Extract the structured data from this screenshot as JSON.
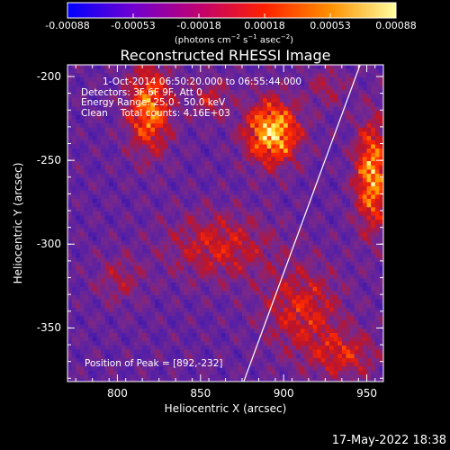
{
  "colorbar": {
    "ticks": [
      "-0.00088",
      "-0.00053",
      "-0.00018",
      "0.00018",
      "0.00053",
      "0.00088"
    ],
    "tick_values": [
      -0.00088,
      -0.00053,
      -0.00018,
      0.00018,
      0.00053,
      0.00088
    ],
    "units_parts": [
      "(photons cm",
      "−2",
      " s",
      "−1",
      " asec",
      "−2",
      ")"
    ],
    "stops": [
      "#0000ff",
      "#7000d0",
      "#c00070",
      "#ff2000",
      "#ff9000",
      "#ffffa0"
    ]
  },
  "chart_data": {
    "type": "heatmap",
    "title": "Reconstructed RHESSI Image",
    "xlabel": "Heliocentric X (arcsec)",
    "ylabel": "Heliocentric Y (arcsec)",
    "xlim": [
      770,
      960
    ],
    "ylim": [
      -382,
      -193
    ],
    "xticks": [
      800,
      850,
      900,
      950
    ],
    "yticks": [
      -200,
      -250,
      -300,
      -350
    ],
    "annotations": {
      "time": "1-Oct-2014 06:50:20.000 to 06:55:44.000",
      "detectors": "Detectors: 3F 6F 9F, Att 0",
      "energy": "Energy Range: 25.0 - 50.0 keV",
      "algorithm": "Clean",
      "counts": "Total counts: 4.16E+03",
      "peak": "Position of Peak = [892,-232]"
    },
    "peak": [
      892,
      -232
    ],
    "limb_line": [
      [
        876,
        -382
      ],
      [
        946,
        -193
      ]
    ],
    "hotspots": [
      {
        "x": 818,
        "y": -218,
        "amp": 1.0,
        "sx": 9,
        "sy": 18
      },
      {
        "x": 892,
        "y": -232,
        "amp": 1.3,
        "sx": 11,
        "sy": 13
      },
      {
        "x": 952,
        "y": -258,
        "amp": 1.1,
        "sx": 7,
        "sy": 22
      },
      {
        "x": 855,
        "y": -212,
        "amp": 0.45,
        "sx": 8,
        "sy": 8
      },
      {
        "x": 860,
        "y": -300,
        "amp": 0.55,
        "sx": 22,
        "sy": 14
      },
      {
        "x": 910,
        "y": -338,
        "amp": 0.6,
        "sx": 16,
        "sy": 18
      },
      {
        "x": 935,
        "y": -365,
        "amp": 0.55,
        "sx": 14,
        "sy": 10
      },
      {
        "x": 800,
        "y": -320,
        "amp": 0.35,
        "sx": 10,
        "sy": 10
      },
      {
        "x": 925,
        "y": -205,
        "amp": 0.35,
        "sx": 8,
        "sy": 8
      }
    ]
  },
  "footer": {
    "date": "17-May-2022 18:38"
  }
}
